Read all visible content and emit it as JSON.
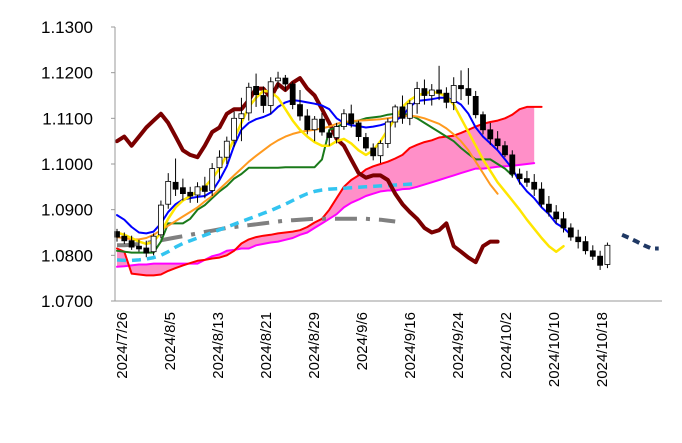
{
  "chart_data": {
    "type": "line",
    "subtype": "ichimoku-candlestick",
    "title": "",
    "xlabel": "",
    "ylabel": "",
    "ylim": [
      1.07,
      1.13
    ],
    "y_ticks": [
      "1.1300",
      "1.1200",
      "1.1100",
      "1.1000",
      "1.0900",
      "1.0800",
      "1.0700"
    ],
    "x_ticks": [
      "2024/7/26",
      "2024/8/5",
      "2024/8/13",
      "2024/8/21",
      "2024/8/29",
      "2024/9/6",
      "2024/9/16",
      "2024/9/24",
      "2024/10/2",
      "2024/10/10",
      "2024/10/18"
    ],
    "grid": false,
    "legend": "none",
    "colors": {
      "candle_up": "#ffffff",
      "candle_down": "#000000",
      "wick": "#000000",
      "tenkan": "#0000ff",
      "kijun": "#1a7a1a",
      "chikou": "#7b0000",
      "span_a": "#ff0000",
      "span_b": "#ff00ff",
      "cloud": "#ff8fc8",
      "ma_short": "#ffe600",
      "ma_mid": "#ff9a1f",
      "ma_long_dash": "#33c4f0",
      "ma_dashdot": "#808080",
      "forecast_dash": "#1f3864"
    },
    "candles": [
      [
        1.0852,
        1.0858,
        1.083,
        1.084
      ],
      [
        1.0842,
        1.085,
        1.0825,
        1.0832
      ],
      [
        1.0832,
        1.0843,
        1.0812,
        1.0818
      ],
      [
        1.082,
        1.0834,
        1.0808,
        1.0814
      ],
      [
        1.0816,
        1.0832,
        1.0796,
        1.0805
      ],
      [
        1.0808,
        1.0848,
        1.08,
        1.0842
      ],
      [
        1.0845,
        1.092,
        1.0838,
        1.091
      ],
      [
        1.0912,
        1.098,
        1.0902,
        1.0962
      ],
      [
        1.096,
        1.1012,
        1.093,
        1.0945
      ],
      [
        1.0948,
        1.0968,
        1.092,
        1.0935
      ],
      [
        1.0938,
        1.095,
        1.0915,
        1.093
      ],
      [
        1.0932,
        1.096,
        1.0915,
        1.095
      ],
      [
        1.0952,
        1.0972,
        1.0925,
        1.094
      ],
      [
        1.0942,
        1.1002,
        1.093,
        1.099
      ],
      [
        1.0992,
        1.103,
        1.0968,
        1.1015
      ],
      [
        1.1015,
        1.106,
        1.1,
        1.105
      ],
      [
        1.1052,
        1.1115,
        1.1038,
        1.11
      ],
      [
        1.11,
        1.1145,
        1.105,
        1.111
      ],
      [
        1.1112,
        1.1178,
        1.1095,
        1.1168
      ],
      [
        1.117,
        1.1198,
        1.1125,
        1.1152
      ],
      [
        1.115,
        1.117,
        1.1112,
        1.1128
      ],
      [
        1.1128,
        1.119,
        1.111,
        1.118
      ],
      [
        1.1182,
        1.1202,
        1.1165,
        1.1188
      ],
      [
        1.1188,
        1.1195,
        1.116,
        1.1175
      ],
      [
        1.1175,
        1.118,
        1.112,
        1.113
      ],
      [
        1.113,
        1.1162,
        1.1095,
        1.1105
      ],
      [
        1.1105,
        1.112,
        1.1065,
        1.1075
      ],
      [
        1.1075,
        1.1105,
        1.105,
        1.1098
      ],
      [
        1.1098,
        1.1112,
        1.1062,
        1.107
      ],
      [
        1.1068,
        1.1075,
        1.104,
        1.1058
      ],
      [
        1.1058,
        1.109,
        1.1045,
        1.1082
      ],
      [
        1.1082,
        1.112,
        1.1075,
        1.111
      ],
      [
        1.111,
        1.113,
        1.108,
        1.1088
      ],
      [
        1.109,
        1.1095,
        1.105,
        1.106
      ],
      [
        1.1058,
        1.1068,
        1.1028,
        1.1035
      ],
      [
        1.1035,
        1.1045,
        1.1008,
        1.1018
      ],
      [
        1.1018,
        1.1052,
        1.1002,
        1.1045
      ],
      [
        1.1045,
        1.11,
        1.1035,
        1.1092
      ],
      [
        1.1092,
        1.113,
        1.108,
        1.1125
      ],
      [
        1.1125,
        1.115,
        1.1088,
        1.11
      ],
      [
        1.11,
        1.114,
        1.1085,
        1.1132
      ],
      [
        1.1132,
        1.118,
        1.111,
        1.1165
      ],
      [
        1.1165,
        1.1185,
        1.113,
        1.115
      ],
      [
        1.115,
        1.1175,
        1.1128,
        1.1162
      ],
      [
        1.1162,
        1.1215,
        1.114,
        1.1155
      ],
      [
        1.1155,
        1.1168,
        1.1122,
        1.1135
      ],
      [
        1.1135,
        1.119,
        1.1118,
        1.1172
      ],
      [
        1.1172,
        1.1205,
        1.114,
        1.1165
      ],
      [
        1.1165,
        1.121,
        1.113,
        1.115
      ],
      [
        1.1148,
        1.116,
        1.11,
        1.1108
      ],
      [
        1.1108,
        1.1115,
        1.1065,
        1.1075
      ],
      [
        1.1075,
        1.109,
        1.1042,
        1.1055
      ],
      [
        1.1055,
        1.1072,
        1.1032,
        1.104
      ],
      [
        1.104,
        1.105,
        1.1015,
        1.102
      ],
      [
        1.102,
        1.103,
        1.097,
        1.0978
      ],
      [
        1.0978,
        1.099,
        1.0955,
        1.0968
      ],
      [
        1.0968,
        1.0985,
        1.095,
        1.096
      ],
      [
        1.096,
        1.0978,
        1.093,
        1.0945
      ],
      [
        1.0945,
        1.096,
        1.0905,
        1.0912
      ],
      [
        1.0912,
        1.093,
        1.0885,
        1.0895
      ],
      [
        1.0895,
        1.091,
        1.087,
        1.088
      ],
      [
        1.088,
        1.0895,
        1.085,
        1.086
      ],
      [
        1.086,
        1.087,
        1.0832,
        1.084
      ],
      [
        1.084,
        1.0856,
        1.0815,
        1.083
      ],
      [
        1.083,
        1.0842,
        1.0802,
        1.081
      ],
      [
        1.081,
        1.0822,
        1.079,
        1.0798
      ],
      [
        1.0798,
        1.081,
        1.0768,
        1.0778
      ],
      [
        1.078,
        1.0828,
        1.0772,
        1.0822
      ]
    ],
    "series": [
      {
        "key": "tenkan",
        "values": [
          1.0888,
          1.0878,
          1.0862,
          1.085,
          1.0848,
          1.0852,
          1.087,
          1.0895,
          1.0912,
          1.0922,
          1.0925,
          1.0928,
          1.093,
          1.094,
          1.0965,
          1.0995,
          1.104,
          1.1075,
          1.109,
          1.1098,
          1.1103,
          1.111,
          1.1125,
          1.1135,
          1.114,
          1.1138,
          1.1135,
          1.1132,
          1.1128,
          1.112,
          1.11,
          1.109,
          1.1085,
          1.1083,
          1.108,
          1.1082,
          1.1085,
          1.109,
          1.1095,
          1.1105,
          1.1125,
          1.1138,
          1.114,
          1.1142,
          1.1145,
          1.1145,
          1.114,
          1.113,
          1.111,
          1.108,
          1.106,
          1.1045,
          1.103,
          1.101,
          1.099,
          1.096,
          1.094,
          1.0925,
          1.0905,
          1.089,
          1.087,
          1.086,
          1.0845
        ]
      },
      {
        "key": "kijun",
        "values": [
          1.081,
          1.0808,
          1.0806,
          1.0806,
          1.0806,
          1.0806,
          1.083,
          1.087,
          1.087,
          1.087,
          1.088,
          1.09,
          1.091,
          1.0925,
          1.094,
          1.0952,
          1.0968,
          1.0978,
          1.0992,
          1.0992,
          1.0992,
          1.0992,
          1.0992,
          1.0993,
          1.0993,
          1.0993,
          1.0993,
          1.0993,
          1.101,
          1.1075,
          1.108,
          1.109,
          1.1092,
          1.1095,
          1.11,
          1.1102,
          1.1104,
          1.1108,
          1.111,
          1.111,
          1.1108,
          1.11,
          1.109,
          1.108,
          1.107,
          1.106,
          1.105,
          1.1035,
          1.1022,
          1.101,
          1.101,
          1.101,
          1.1,
          1.099,
          1.0975
        ]
      },
      {
        "key": "chikou",
        "values": [
          1.105,
          1.106,
          1.104,
          1.106,
          1.108,
          1.1095,
          1.111,
          1.109,
          1.106,
          1.103,
          1.102,
          1.1015,
          1.104,
          1.107,
          1.108,
          1.111,
          1.112,
          1.112,
          1.114,
          1.1165,
          1.1165,
          1.1145,
          1.1175,
          1.1162,
          1.1178,
          1.1188,
          1.1165,
          1.115,
          1.112,
          1.109,
          1.1055,
          1.104,
          1.101,
          1.098,
          1.097,
          1.0975,
          1.0975,
          1.0965,
          1.0935,
          1.0912,
          1.0895,
          1.088,
          1.086,
          1.085,
          1.0855,
          1.087,
          1.082,
          1.0808,
          1.0795,
          1.0785,
          1.082,
          1.083,
          1.083
        ]
      },
      {
        "key": "span_a",
        "values": [
          1.0815,
          1.0808,
          1.076,
          1.0758,
          1.0756,
          1.0756,
          1.0758,
          1.0766,
          1.0772,
          1.0778,
          1.0783,
          1.0788,
          1.079,
          1.0793,
          1.0795,
          1.08,
          1.081,
          1.0826,
          1.0835,
          1.084,
          1.0843,
          1.0845,
          1.0848,
          1.085,
          1.0852,
          1.0855,
          1.0862,
          1.0872,
          1.088,
          1.09,
          1.0925,
          1.095,
          1.0965,
          1.0975,
          1.0988,
          1.0995,
          1.1,
          1.1005,
          1.1012,
          1.102,
          1.1035,
          1.1042,
          1.1048,
          1.1052,
          1.1058,
          1.106,
          1.1062,
          1.1068,
          1.1075,
          1.1082,
          1.1088,
          1.1092,
          1.1095,
          1.11,
          1.1108,
          1.112,
          1.1125,
          1.1125,
          1.1125
        ]
      },
      {
        "key": "span_b",
        "values": [
          1.0775,
          1.0776,
          1.0778,
          1.078,
          1.078,
          1.0782,
          1.0782,
          1.0782,
          1.0782,
          1.0782,
          1.0782,
          1.0782,
          1.079,
          1.0798,
          1.0802,
          1.081,
          1.0812,
          1.0815,
          1.0815,
          1.0822,
          1.0825,
          1.0828,
          1.083,
          1.0834,
          1.0838,
          1.0845,
          1.085,
          1.086,
          1.087,
          1.088,
          1.089,
          1.0905,
          1.0915,
          1.0922,
          1.093,
          1.0935,
          1.094,
          1.0942,
          1.0942,
          1.0945,
          1.0946,
          1.095,
          1.0955,
          1.096,
          1.0965,
          1.097,
          1.0975,
          1.098,
          1.0985,
          1.099,
          1.099,
          1.0992,
          1.0994,
          1.0995,
          1.0996,
          1.0998,
          1.1,
          1.1002
        ]
      },
      {
        "key": "ma_short",
        "values": [
          1.085,
          1.0845,
          1.0838,
          1.083,
          1.0825,
          1.083,
          1.085,
          1.088,
          1.0905,
          1.092,
          1.093,
          1.094,
          1.095,
          1.0968,
          1.099,
          1.102,
          1.1055,
          1.109,
          1.1125,
          1.1145,
          1.116,
          1.1158,
          1.1145,
          1.112,
          1.1095,
          1.1075,
          1.106,
          1.1048,
          1.104,
          1.104,
          1.105,
          1.1055,
          1.1045,
          1.103,
          1.102,
          1.103,
          1.105,
          1.1075,
          1.11,
          1.1125,
          1.114,
          1.115,
          1.1155,
          1.1158,
          1.1155,
          1.1148,
          1.113,
          1.11,
          1.107,
          1.104,
          1.101,
          1.0985,
          1.096,
          1.094,
          1.092,
          1.09,
          1.0878,
          1.0858,
          1.0838,
          1.082,
          1.0808,
          1.082
        ]
      },
      {
        "key": "ma_mid",
        "values": [
          1.084,
          1.0838,
          1.0835,
          1.0835,
          1.0838,
          1.0845,
          1.0855,
          1.0865,
          1.0875,
          1.0885,
          1.0895,
          1.0905,
          1.0918,
          1.093,
          1.0945,
          1.096,
          1.0975,
          1.099,
          1.1005,
          1.1018,
          1.103,
          1.1042,
          1.1052,
          1.106,
          1.1066,
          1.107,
          1.1073,
          1.1075,
          1.1078,
          1.1082,
          1.1088,
          1.1092,
          1.1094,
          1.1095,
          1.1096,
          1.1097,
          1.1098,
          1.11,
          1.1103,
          1.1105,
          1.1106,
          1.1104,
          1.11,
          1.1094,
          1.1088,
          1.1078,
          1.1065,
          1.105,
          1.103,
          1.1005,
          1.098,
          1.0955,
          1.0935
        ]
      },
      {
        "key": "ma_long_dash",
        "values": [
          1.079,
          1.0789,
          1.0789,
          1.079,
          1.0792,
          1.0795,
          1.08,
          1.0808,
          1.0818,
          1.0826,
          1.0832,
          1.0838,
          1.0844,
          1.085,
          1.0856,
          1.0862,
          1.0868,
          1.0874,
          1.088,
          1.0886,
          1.0892,
          1.0898,
          1.0905,
          1.0912,
          1.092,
          1.0928,
          1.0935,
          1.094,
          1.0943,
          1.0945,
          1.0946,
          1.0947,
          1.0948,
          1.0949,
          1.095,
          1.0951,
          1.0952,
          1.0953,
          1.0954,
          1.0955,
          1.0956,
          1.0957
        ]
      },
      {
        "key": "ma_dashdot",
        "values": [
          1.0822,
          1.0822,
          1.0823,
          1.0825,
          1.0827,
          1.083,
          1.0833,
          1.0836,
          1.0839,
          1.0842,
          1.0845,
          1.0848,
          1.0851,
          1.0854,
          1.0857,
          1.086,
          1.0862,
          1.0864,
          1.0866,
          1.0868,
          1.087,
          1.0872,
          1.0874,
          1.0876,
          1.0877,
          1.0878,
          1.0879,
          1.088,
          1.088,
          1.088,
          1.088,
          1.088,
          1.088,
          1.088,
          1.088,
          1.0879,
          1.0878,
          1.0876,
          1.0874
        ]
      },
      {
        "key": "forecast_dash",
        "values": [
          1.0845,
          1.0838,
          1.083,
          1.0822,
          1.0815,
          1.0815
        ]
      }
    ]
  }
}
